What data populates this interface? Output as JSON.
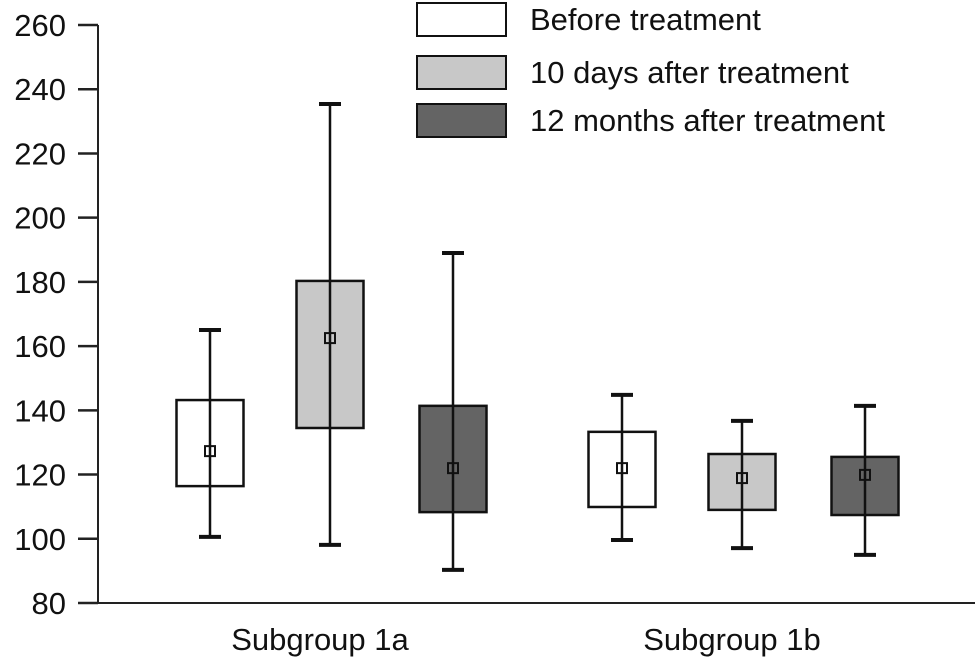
{
  "chart_data": {
    "type": "box",
    "title": "",
    "xlabel": "",
    "ylabel": "",
    "ylim": [
      80,
      260
    ],
    "yticks": [
      80,
      100,
      120,
      140,
      160,
      180,
      200,
      220,
      240,
      260
    ],
    "grid": false,
    "legend_position": "top-right",
    "categories": [
      "Subgroup 1a",
      "Subgroup 1b"
    ],
    "series": [
      {
        "name": "Before treatment",
        "color": "#ffffff",
        "boxes": [
          {
            "whisker_low": 100.6,
            "q1": 116.4,
            "mean": 127.3,
            "q3": 143.2,
            "whisker_high": 165.0
          },
          {
            "whisker_low": 99.6,
            "q1": 109.9,
            "mean": 122.0,
            "q3": 133.3,
            "whisker_high": 144.8
          }
        ]
      },
      {
        "name": "10 days after treatment",
        "color": "#c8c8c8",
        "boxes": [
          {
            "whisker_low": 98.1,
            "q1": 134.5,
            "mean": 162.5,
            "q3": 180.3,
            "whisker_high": 235.4
          },
          {
            "whisker_low": 97.1,
            "q1": 109.0,
            "mean": 118.9,
            "q3": 126.4,
            "whisker_high": 136.7
          }
        ]
      },
      {
        "name": "12 months after treatment",
        "color": "#646464",
        "boxes": [
          {
            "whisker_low": 90.3,
            "q1": 108.3,
            "mean": 122.0,
            "q3": 141.4,
            "whisker_high": 189.0
          },
          {
            "whisker_low": 95.0,
            "q1": 107.4,
            "mean": 119.9,
            "q3": 125.5,
            "whisker_high": 141.4
          }
        ]
      }
    ]
  }
}
